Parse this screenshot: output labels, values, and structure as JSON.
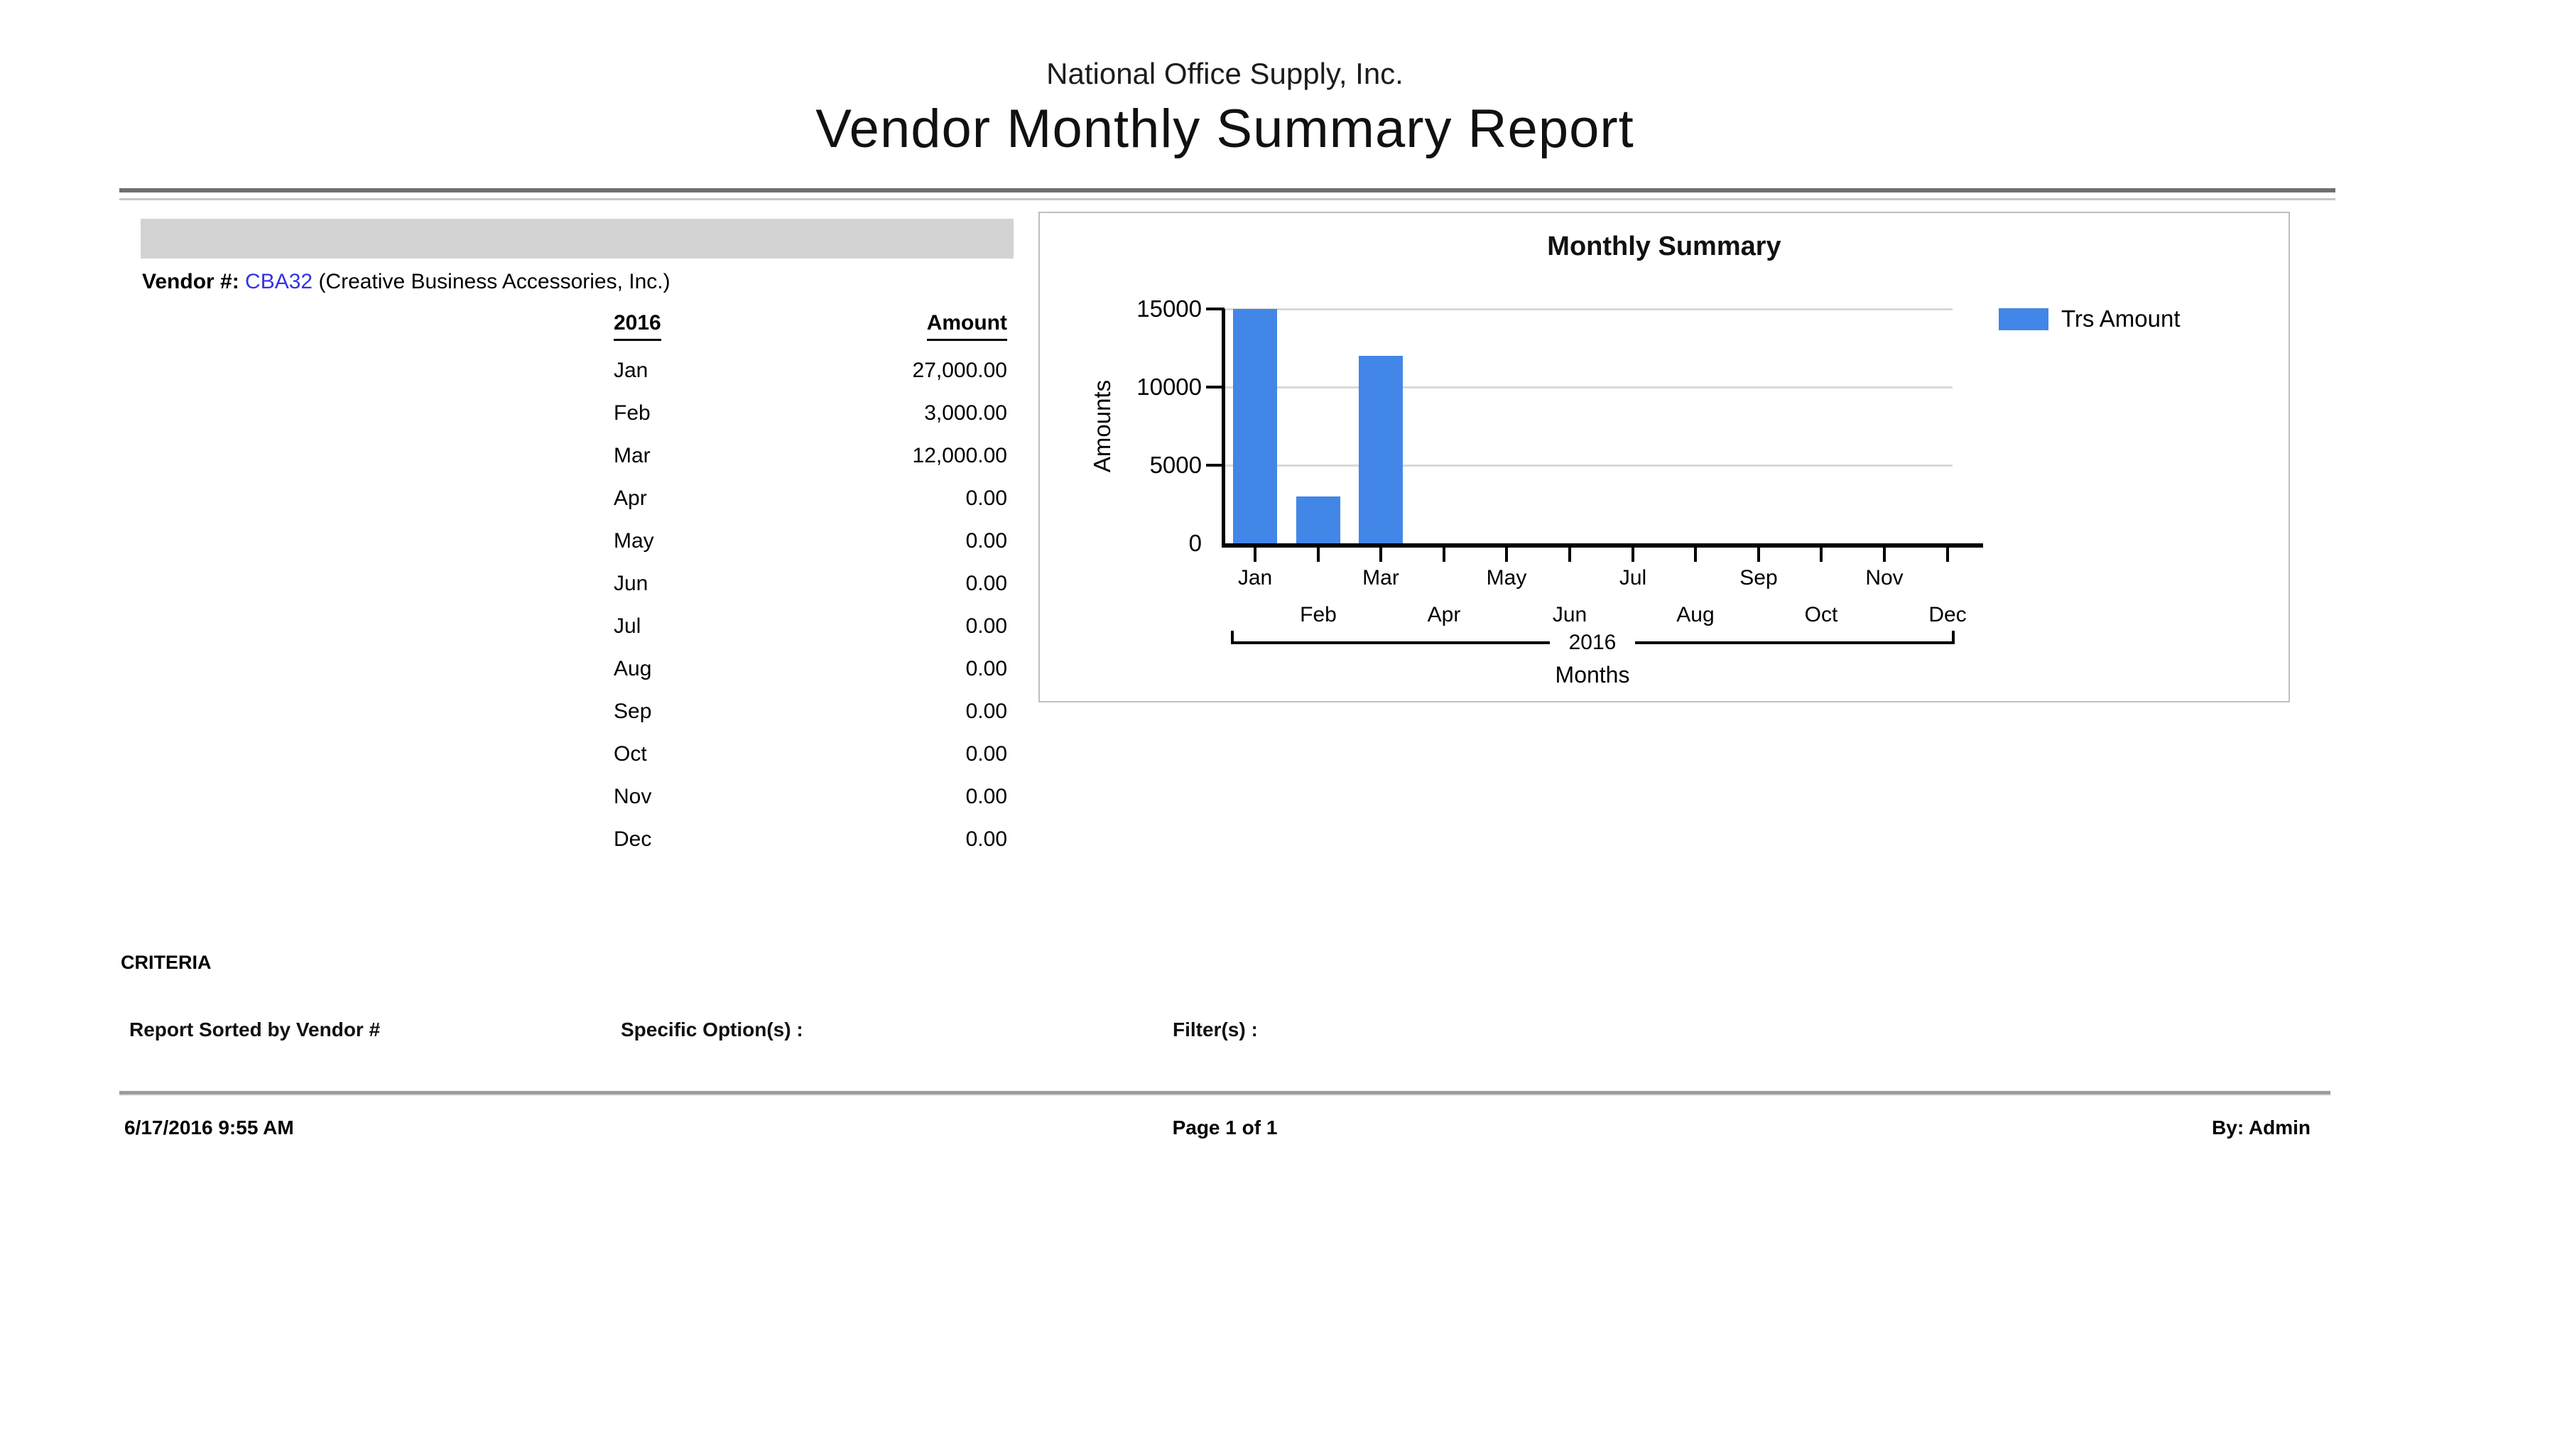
{
  "header": {
    "company": "National Office Supply, Inc.",
    "title": "Vendor Monthly Summary Report"
  },
  "vendor": {
    "label": "Vendor #:",
    "code": "CBA32",
    "name": "(Creative Business Accessories, Inc.)"
  },
  "table": {
    "year_header": "2016",
    "amount_header": "Amount",
    "rows": [
      {
        "month": "Jan",
        "amount": "27,000.00"
      },
      {
        "month": "Feb",
        "amount": "3,000.00"
      },
      {
        "month": "Mar",
        "amount": "12,000.00"
      },
      {
        "month": "Apr",
        "amount": "0.00"
      },
      {
        "month": "May",
        "amount": "0.00"
      },
      {
        "month": "Jun",
        "amount": "0.00"
      },
      {
        "month": "Jul",
        "amount": "0.00"
      },
      {
        "month": "Aug",
        "amount": "0.00"
      },
      {
        "month": "Sep",
        "amount": "0.00"
      },
      {
        "month": "Oct",
        "amount": "0.00"
      },
      {
        "month": "Nov",
        "amount": "0.00"
      },
      {
        "month": "Dec",
        "amount": "0.00"
      }
    ]
  },
  "chart_data": {
    "type": "bar",
    "title": "Monthly Summary",
    "categories": [
      "Jan",
      "Feb",
      "Mar",
      "Apr",
      "May",
      "Jun",
      "Jul",
      "Aug",
      "Sep",
      "Oct",
      "Nov",
      "Dec"
    ],
    "series": [
      {
        "name": "Trs Amount",
        "values": [
          27000,
          3000,
          12000,
          0,
          0,
          0,
          0,
          0,
          0,
          0,
          0,
          0
        ]
      }
    ],
    "ylabel": "Amounts",
    "xlabel": "Months",
    "group_label": "2016",
    "ylim": [
      0,
      15000
    ],
    "yticks": [
      0,
      5000,
      10000,
      15000
    ],
    "bar_color": "#4286E8",
    "grid": true,
    "legend_position": "right",
    "note": "Jan bar is clipped at the axis maximum of 15000"
  },
  "criteria": {
    "heading": "CRITERIA",
    "sorted_by": "Report Sorted by Vendor #",
    "specific_options_label": "Specific Option(s) :",
    "filters_label": "Filter(s) :"
  },
  "footer": {
    "datetime": "6/17/2016 9:55 AM",
    "page": "Page 1 of 1",
    "by": "By: Admin"
  },
  "colors": {
    "vendor_code": "#3333E8",
    "bar_blue": "#4286E8",
    "gray_bar": "#D2D2D2"
  }
}
